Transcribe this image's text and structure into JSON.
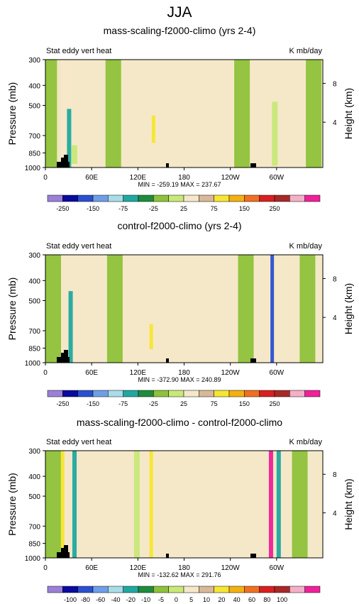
{
  "figure_title": "JJA",
  "chart_data": [
    {
      "type": "heatmap",
      "title": "mass-scaling-f2000-climo (yrs 2-4)",
      "left_label": "Stat eddy vert heat",
      "right_label": "K mb/day",
      "ylabel": "Pressure (mb)",
      "y2label": "Height (km)",
      "x_ticks": [
        "0",
        "60E",
        "120E",
        "180",
        "120W",
        "60W"
      ],
      "y_ticks": [
        "300",
        "400",
        "500",
        "700",
        "850",
        "1000"
      ],
      "y2_ticks": [
        "8",
        "4"
      ],
      "stats": "MIN = -259.19  MAX = 237.67",
      "colorbar_labels": [
        "-250",
        "-150",
        "-75",
        "-25",
        "25",
        "75",
        "150",
        "250"
      ],
      "colorbar_colors": [
        "#9b80d8",
        "#0a0aa0",
        "#2a50d0",
        "#6e9ee8",
        "#a8dce8",
        "#20a8a0",
        "#1e8c3c",
        "#8ec23a",
        "#c8e878",
        "#f5e8c8",
        "#d8b896",
        "#f6e632",
        "#f4b010",
        "#f07020",
        "#d82020",
        "#a82828",
        "#f4b0c8",
        "#f0209a"
      ],
      "field": [
        {
          "lon": 0,
          "p1": 300,
          "p2": 1000,
          "band": "neg_lo"
        },
        {
          "lon": 15,
          "p1": 300,
          "p2": 1000,
          "band": "neutral"
        },
        {
          "lon": 28,
          "p1": 520,
          "p2": 1000,
          "band": "neg_hi"
        },
        {
          "lon": 34,
          "p1": 780,
          "p2": 960,
          "band": "neg_mid"
        },
        {
          "lon": 78,
          "p1": 300,
          "p2": 1000,
          "band": "neg_lo"
        },
        {
          "lon": 138,
          "p1": 560,
          "p2": 760,
          "band": "pos_hi"
        },
        {
          "lon": 245,
          "p1": 300,
          "p2": 1000,
          "band": "neg_lo"
        },
        {
          "lon": 294,
          "p1": 480,
          "p2": 980,
          "band": "neg_mid"
        },
        {
          "lon": 338,
          "p1": 300,
          "p2": 1000,
          "band": "neg_lo"
        }
      ]
    },
    {
      "type": "heatmap",
      "title": "control-f2000-climo (yrs 2-4)",
      "left_label": "Stat eddy vert heat",
      "right_label": "K mb/day",
      "ylabel": "Pressure (mb)",
      "y2label": "Height (km)",
      "x_ticks": [
        "0",
        "60E",
        "120E",
        "180",
        "120W",
        "60W"
      ],
      "y_ticks": [
        "300",
        "400",
        "500",
        "700",
        "850",
        "1000"
      ],
      "y2_ticks": [
        "8",
        "4"
      ],
      "stats": "MIN = -372.90  MAX = 240.89",
      "colorbar_labels": [
        "-250",
        "-150",
        "-75",
        "-25",
        "25",
        "75",
        "150",
        "250"
      ],
      "colorbar_colors": [
        "#9b80d8",
        "#0a0aa0",
        "#2a50d0",
        "#6e9ee8",
        "#a8dce8",
        "#20a8a0",
        "#1e8c3c",
        "#8ec23a",
        "#c8e878",
        "#f5e8c8",
        "#d8b896",
        "#f6e632",
        "#f4b010",
        "#f07020",
        "#d82020",
        "#a82828",
        "#f4b0c8",
        "#f0209a"
      ],
      "field": [
        {
          "lon": 0,
          "p1": 300,
          "p2": 1000,
          "band": "neg_lo"
        },
        {
          "lon": 30,
          "p1": 450,
          "p2": 1000,
          "band": "neg_hi"
        },
        {
          "lon": 80,
          "p1": 300,
          "p2": 1000,
          "band": "neg_lo"
        },
        {
          "lon": 135,
          "p1": 650,
          "p2": 860,
          "band": "pos_hi"
        },
        {
          "lon": 250,
          "p1": 300,
          "p2": 1000,
          "band": "neg_lo"
        },
        {
          "lon": 292,
          "p1": 300,
          "p2": 1000,
          "band": "neg_extreme"
        },
        {
          "lon": 330,
          "p1": 300,
          "p2": 1000,
          "band": "neg_lo"
        }
      ]
    },
    {
      "type": "heatmap",
      "title": "mass-scaling-f2000-climo - control-f2000-climo",
      "left_label": "Stat eddy vert heat",
      "right_label": "K mb/day",
      "ylabel": "Pressure (mb)",
      "y2label": "Height (km)",
      "x_ticks": [
        "0",
        "60E",
        "120E",
        "180",
        "120W",
        "60W"
      ],
      "y_ticks": [
        "300",
        "400",
        "500",
        "700",
        "850",
        "1000"
      ],
      "y2_ticks": [
        "8",
        "4"
      ],
      "stats": "MIN = -132.62  MAX = 291.76",
      "colorbar_labels": [
        "-100",
        "-80",
        "-60",
        "-40",
        "-20",
        "-10",
        "-5",
        "0",
        "5",
        "10",
        "20",
        "40",
        "60",
        "80",
        "100"
      ],
      "colorbar_colors": [
        "#9b80d8",
        "#0a0aa0",
        "#2a50d0",
        "#6e9ee8",
        "#a8dce8",
        "#20a8a0",
        "#1e8c3c",
        "#8ec23a",
        "#c8e878",
        "#f5e8c8",
        "#d8b896",
        "#f6e632",
        "#f4b010",
        "#f07020",
        "#d82020",
        "#a82828",
        "#f4b0c8",
        "#f0209a"
      ],
      "field": [
        {
          "lon": 0,
          "p1": 300,
          "p2": 1000,
          "band": "neg_lo"
        },
        {
          "lon": 20,
          "p1": 300,
          "p2": 1000,
          "band": "pos_hi"
        },
        {
          "lon": 35,
          "p1": 300,
          "p2": 1000,
          "band": "neg_hi"
        },
        {
          "lon": 115,
          "p1": 300,
          "p2": 1000,
          "band": "neg_mid"
        },
        {
          "lon": 135,
          "p1": 300,
          "p2": 1000,
          "band": "pos_hi"
        },
        {
          "lon": 290,
          "p1": 300,
          "p2": 1000,
          "band": "pos_extreme"
        },
        {
          "lon": 300,
          "p1": 300,
          "p2": 1000,
          "band": "neg_hi"
        },
        {
          "lon": 320,
          "p1": 300,
          "p2": 1000,
          "band": "neg_lo"
        }
      ]
    }
  ]
}
